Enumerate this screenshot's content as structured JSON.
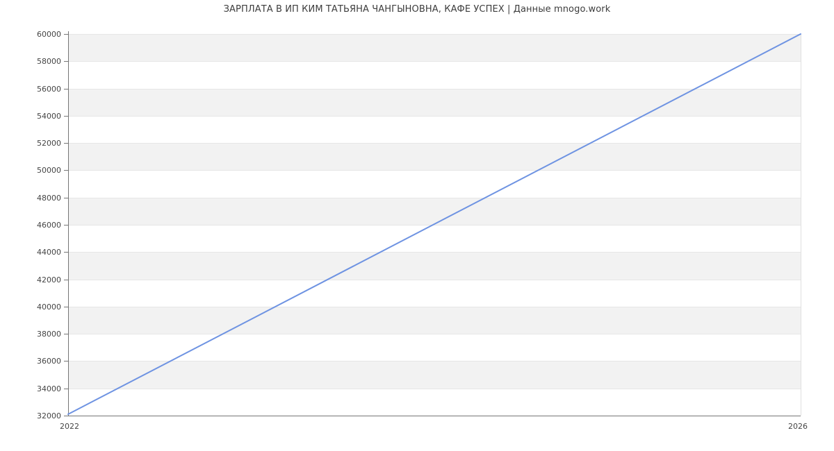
{
  "chart_data": {
    "type": "line",
    "title": "ЗАРПЛАТА В ИП КИМ ТАТЬЯНА ЧАНГЫНОВНА, КАФЕ УСПЕХ | Данные mnogo.work",
    "x": [
      2022,
      2026
    ],
    "series": [
      {
        "name": "Зарплата",
        "values": [
          32100,
          60000
        ]
      }
    ],
    "xlabel": "",
    "ylabel": "",
    "xlim": [
      2022,
      2026
    ],
    "ylim": [
      32000,
      60000
    ],
    "ytick_step": 2000,
    "yticks": [
      32000,
      34000,
      36000,
      38000,
      40000,
      42000,
      44000,
      46000,
      48000,
      50000,
      52000,
      54000,
      56000,
      58000,
      60000
    ],
    "xtick_labels": [
      "2022",
      "2026"
    ],
    "grid": "horizontal",
    "plot_bands": "alternating gray/white between y gridlines, gray topmost",
    "legend": "none",
    "colors": {
      "line": "#6e93e2",
      "band": "#f2f2f2",
      "gridline": "#e6e6e6",
      "axis": "#757575",
      "plot_border_right": "#e0e0e0",
      "tick_label": "#444444",
      "title": "#3c3c3c"
    }
  }
}
